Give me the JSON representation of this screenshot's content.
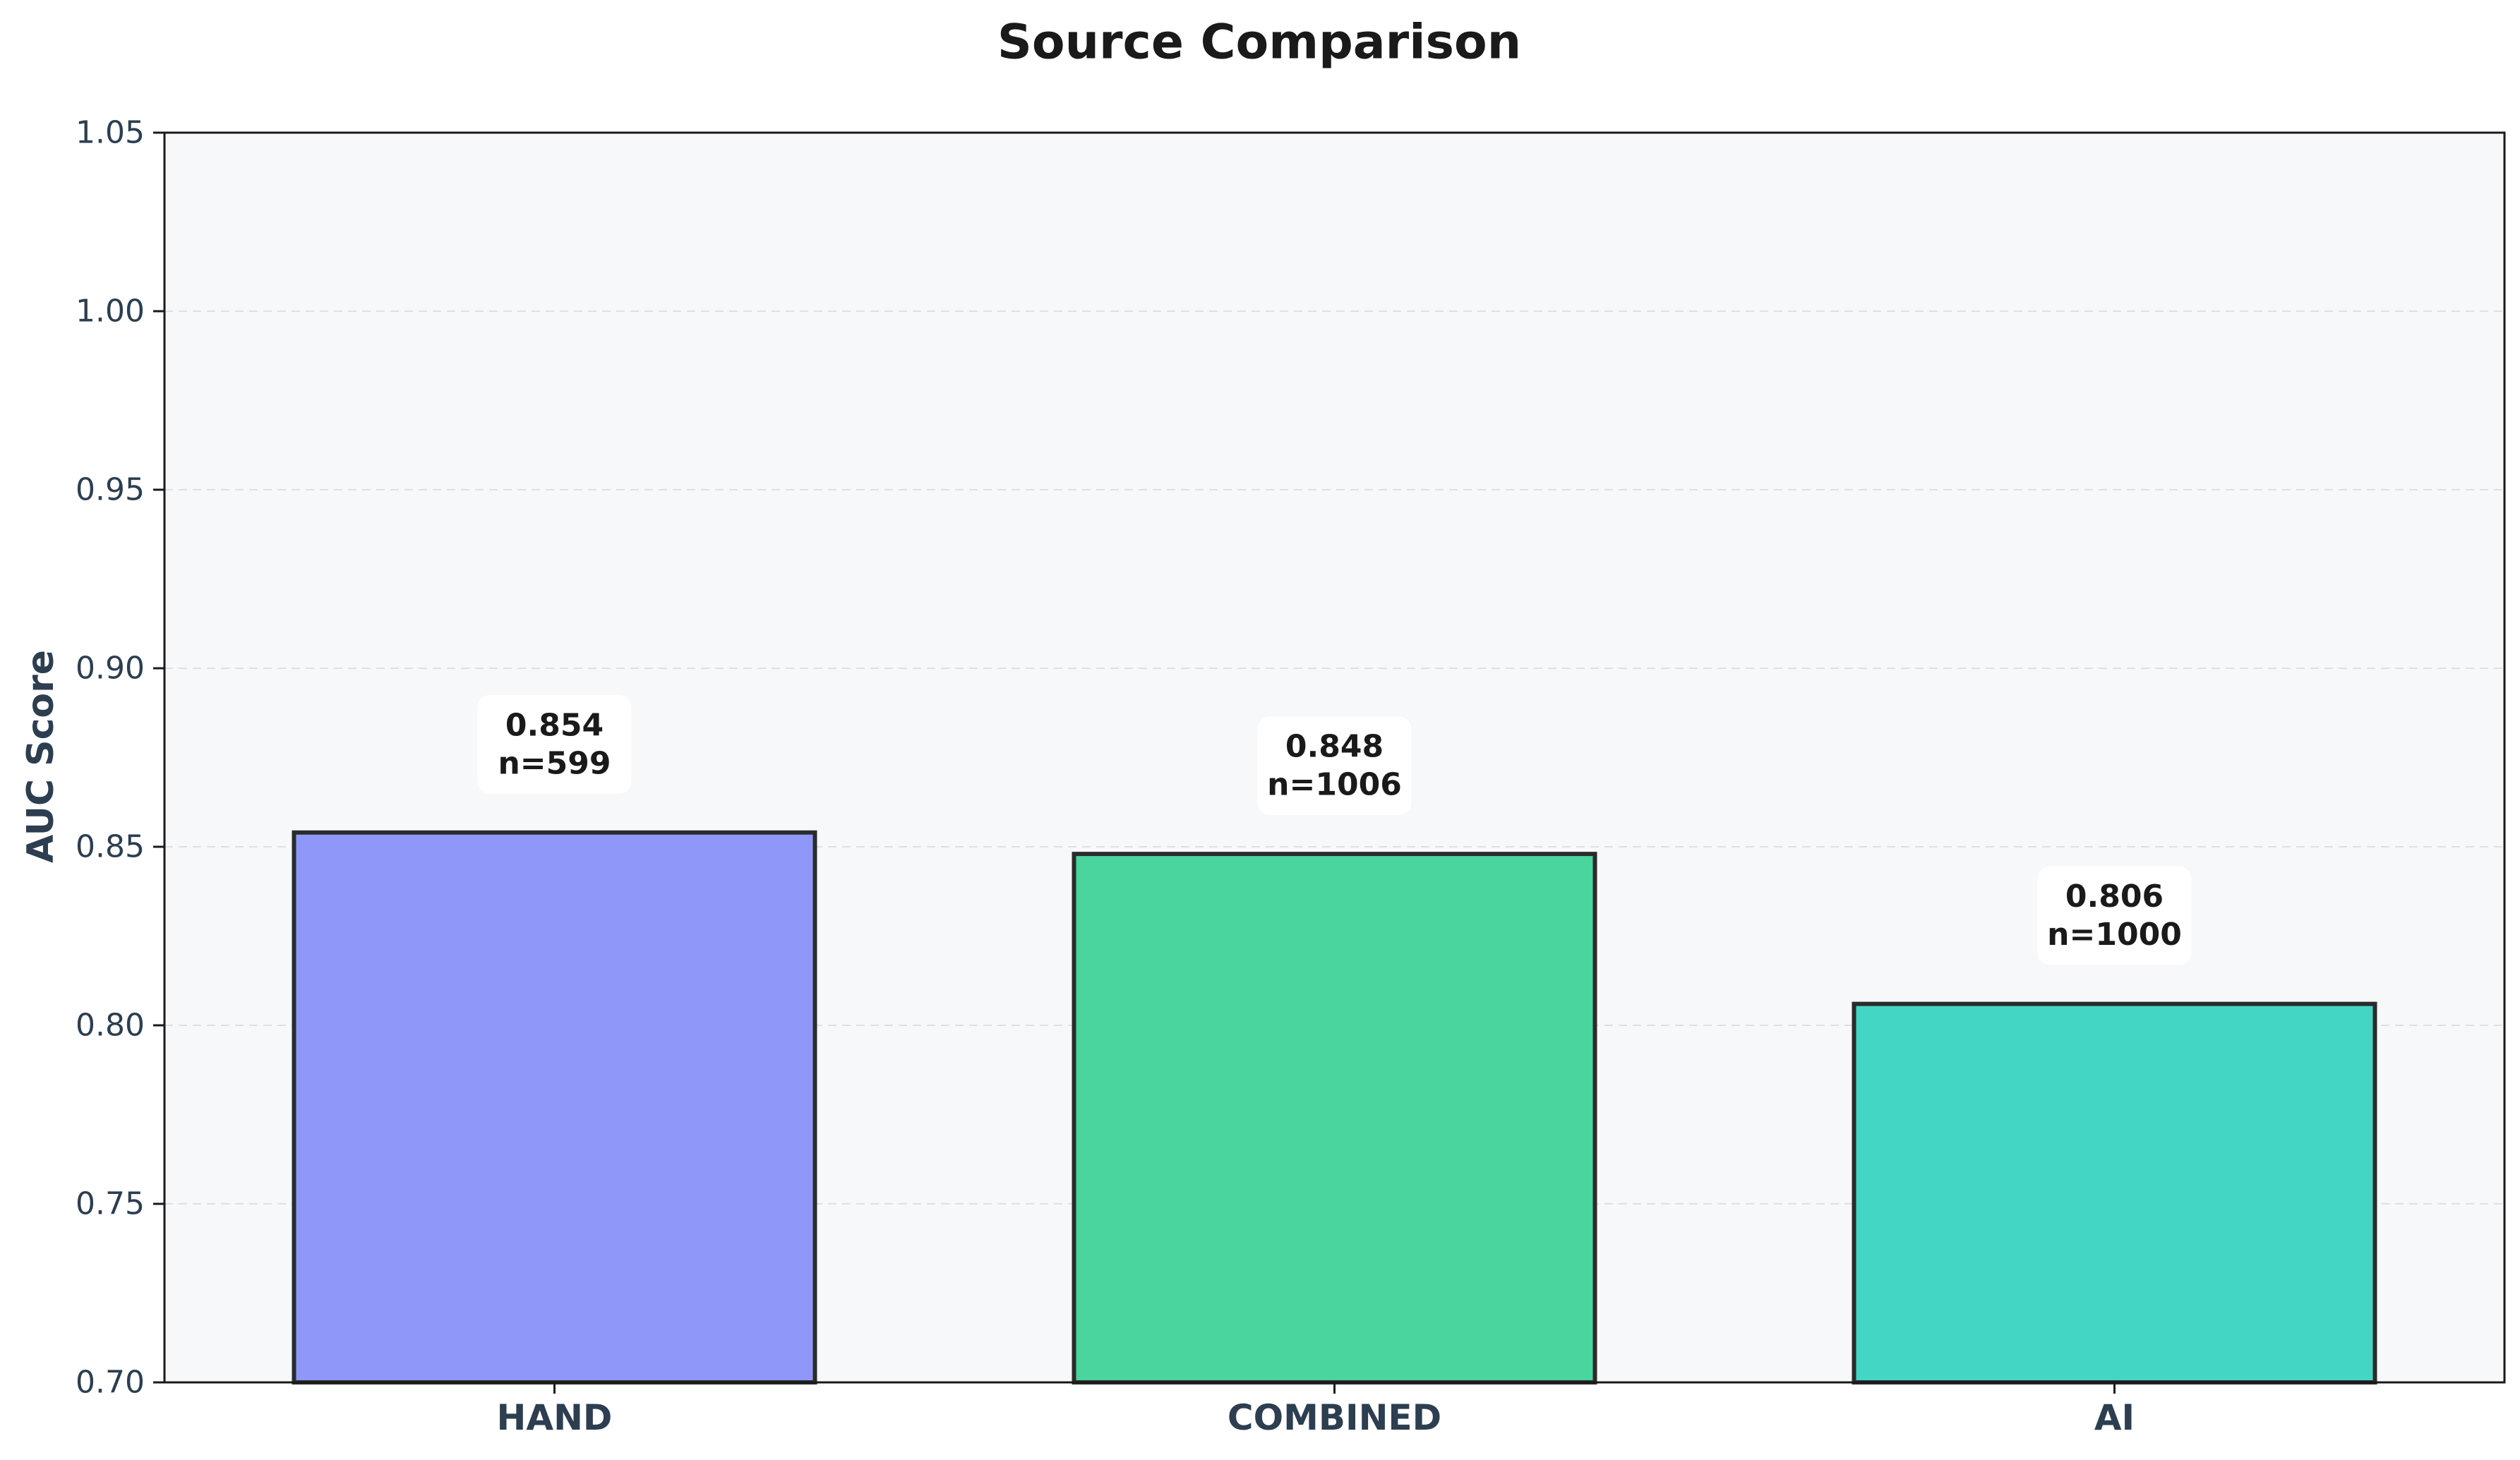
{
  "chart_data": {
    "type": "bar",
    "title": "Source Comparison",
    "xlabel": "",
    "ylabel": "AUC Score",
    "categories": [
      "HAND",
      "COMBINED",
      "AI"
    ],
    "values": [
      0.854,
      0.848,
      0.806
    ],
    "data_labels": [
      {
        "value": "0.854",
        "n": "n=599"
      },
      {
        "value": "0.848",
        "n": "n=1006"
      },
      {
        "value": "0.806",
        "n": "n=1000"
      }
    ],
    "bar_colors": [
      "#8f98f8",
      "#4ad59e",
      "#44d6c4"
    ],
    "edge_color": "#2b2b2b",
    "plot_background": "#f7f8fa",
    "ylim": [
      0.7,
      1.05
    ],
    "yticks": [
      "0.70",
      "0.75",
      "0.80",
      "0.85",
      "0.90",
      "0.95",
      "1.00",
      "1.05"
    ],
    "ytick_values": [
      0.7,
      0.75,
      0.8,
      0.85,
      0.9,
      0.95,
      1.0,
      1.05
    ],
    "grid": "horizontal dashed",
    "legend": "none"
  }
}
